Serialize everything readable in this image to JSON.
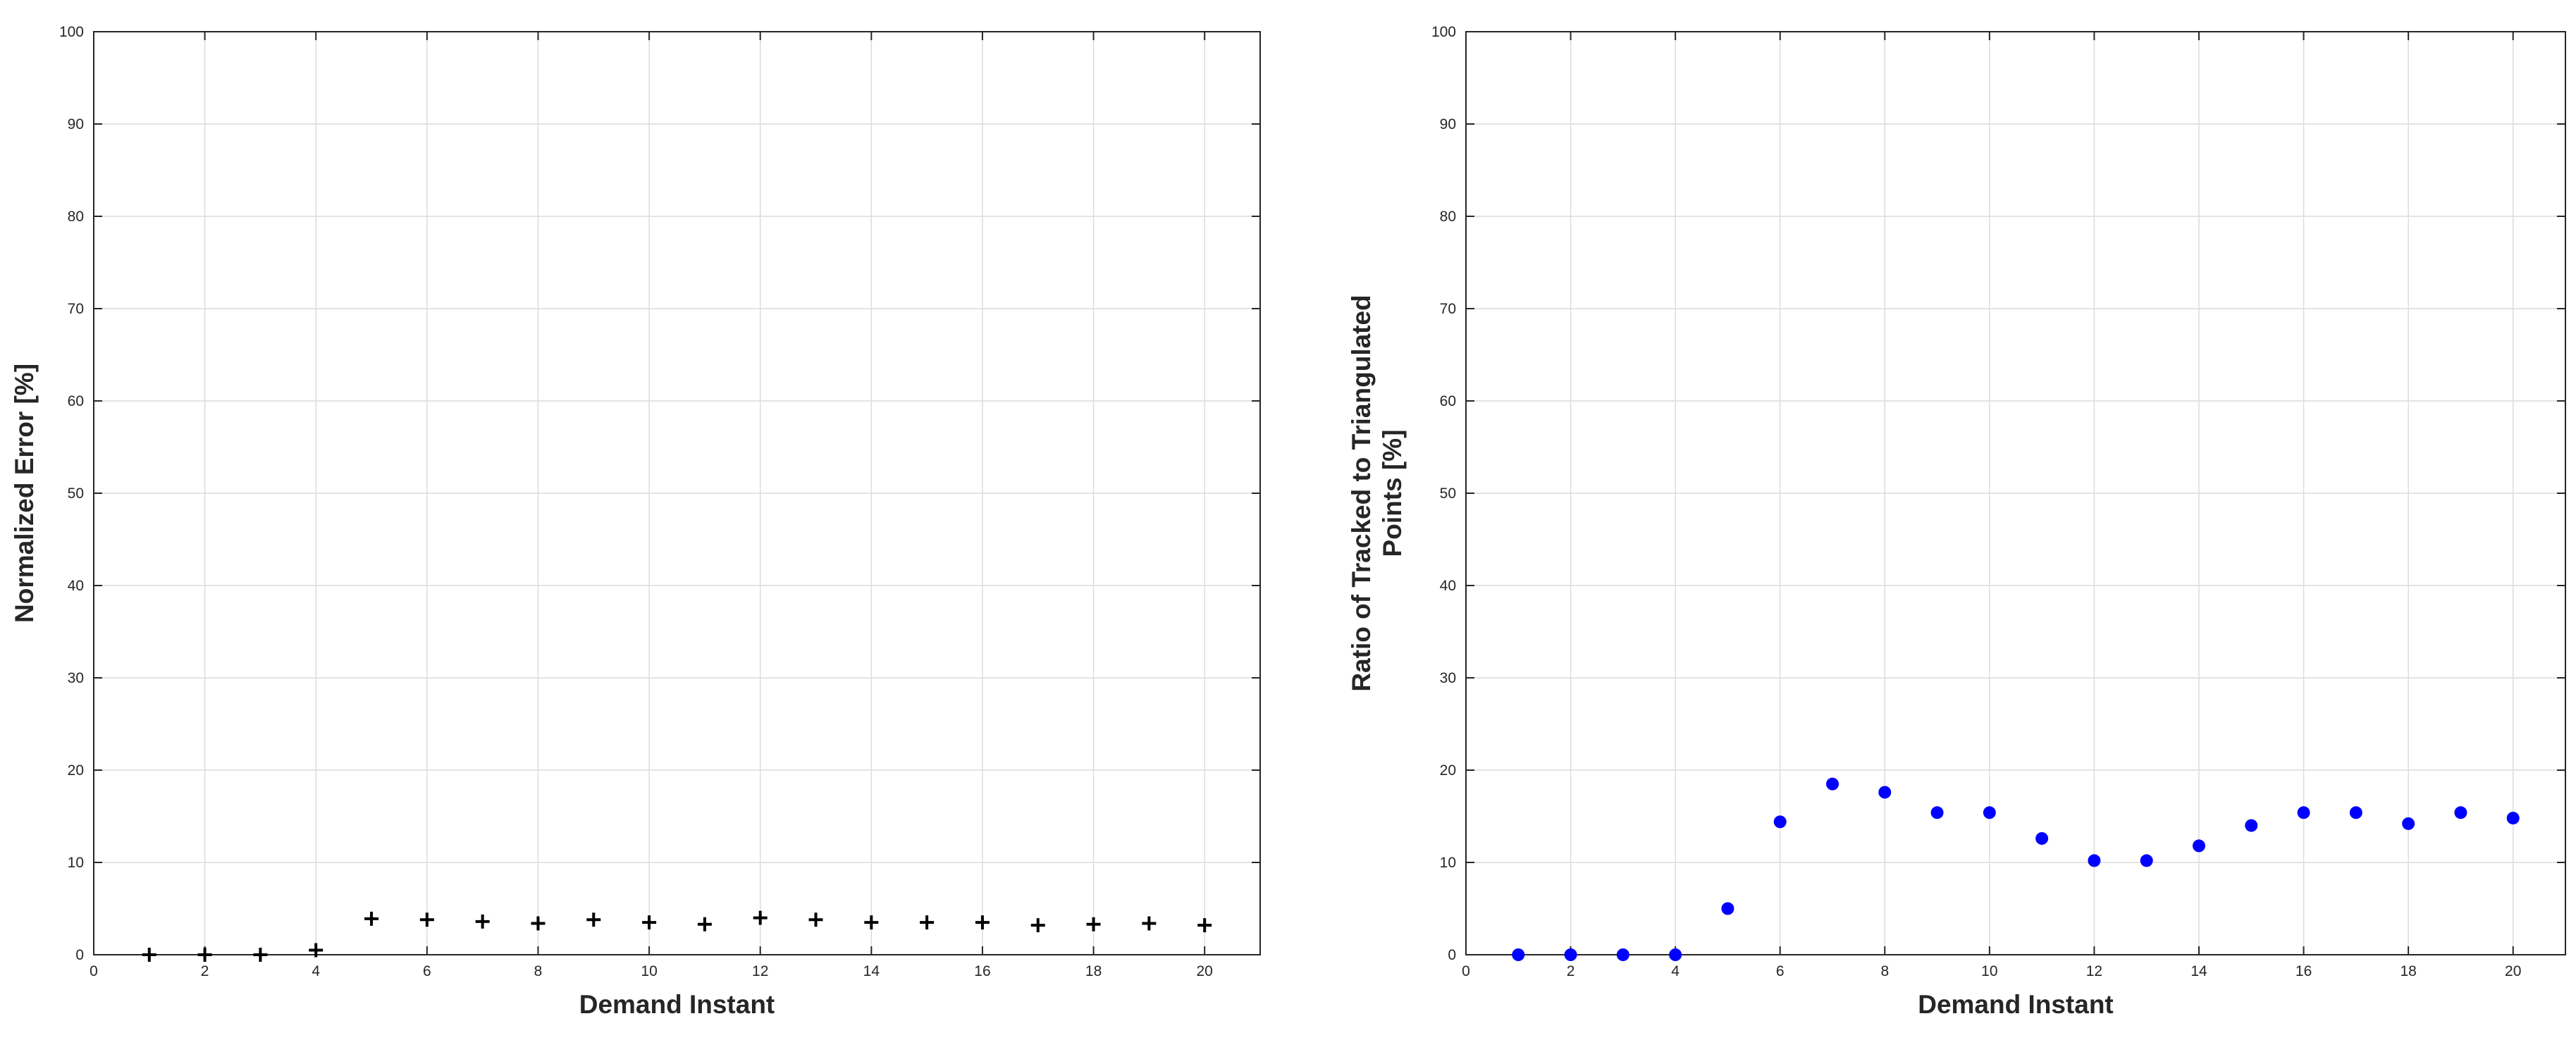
{
  "chart_data": [
    {
      "type": "scatter",
      "xlabel": "Demand Instant",
      "ylabel": "Normalized Error [%]",
      "xlim": [
        0,
        21
      ],
      "ylim": [
        0,
        100
      ],
      "xticks": [
        "0",
        "2",
        "4",
        "6",
        "8",
        "10",
        "12",
        "14",
        "16",
        "18",
        "20"
      ],
      "yticks": [
        "0",
        "10",
        "20",
        "30",
        "40",
        "50",
        "60",
        "70",
        "80",
        "90",
        "100"
      ],
      "grid": true,
      "marker": "plus",
      "color": "#000000",
      "x": [
        1,
        2,
        3,
        4,
        5,
        6,
        7,
        8,
        9,
        10,
        11,
        12,
        13,
        14,
        15,
        16,
        17,
        18,
        19,
        20
      ],
      "y": [
        0,
        0,
        0,
        0.5,
        3.9,
        3.8,
        3.6,
        3.4,
        3.8,
        3.5,
        3.3,
        4.0,
        3.8,
        3.5,
        3.5,
        3.5,
        3.2,
        3.3,
        3.4,
        3.2
      ]
    },
    {
      "type": "scatter",
      "xlabel": "Demand Instant",
      "ylabel": [
        "Ratio of Tracked to Triangulated",
        "Points [%]"
      ],
      "xlim": [
        0,
        21
      ],
      "ylim": [
        0,
        100
      ],
      "xticks": [
        "0",
        "2",
        "4",
        "6",
        "8",
        "10",
        "12",
        "14",
        "16",
        "18",
        "20"
      ],
      "yticks": [
        "0",
        "10",
        "20",
        "30",
        "40",
        "50",
        "60",
        "70",
        "80",
        "90",
        "100"
      ],
      "grid": true,
      "marker": "dot",
      "color": "#0000ff",
      "x": [
        1,
        2,
        3,
        4,
        5,
        6,
        7,
        8,
        9,
        10,
        11,
        12,
        13,
        14,
        15,
        16,
        17,
        18,
        19,
        20
      ],
      "y": [
        0,
        0,
        0,
        0,
        5.0,
        14.4,
        18.5,
        17.6,
        15.4,
        15.4,
        12.6,
        10.2,
        10.2,
        11.8,
        14.0,
        15.4,
        15.4,
        14.2,
        15.4,
        14.8
      ]
    }
  ]
}
